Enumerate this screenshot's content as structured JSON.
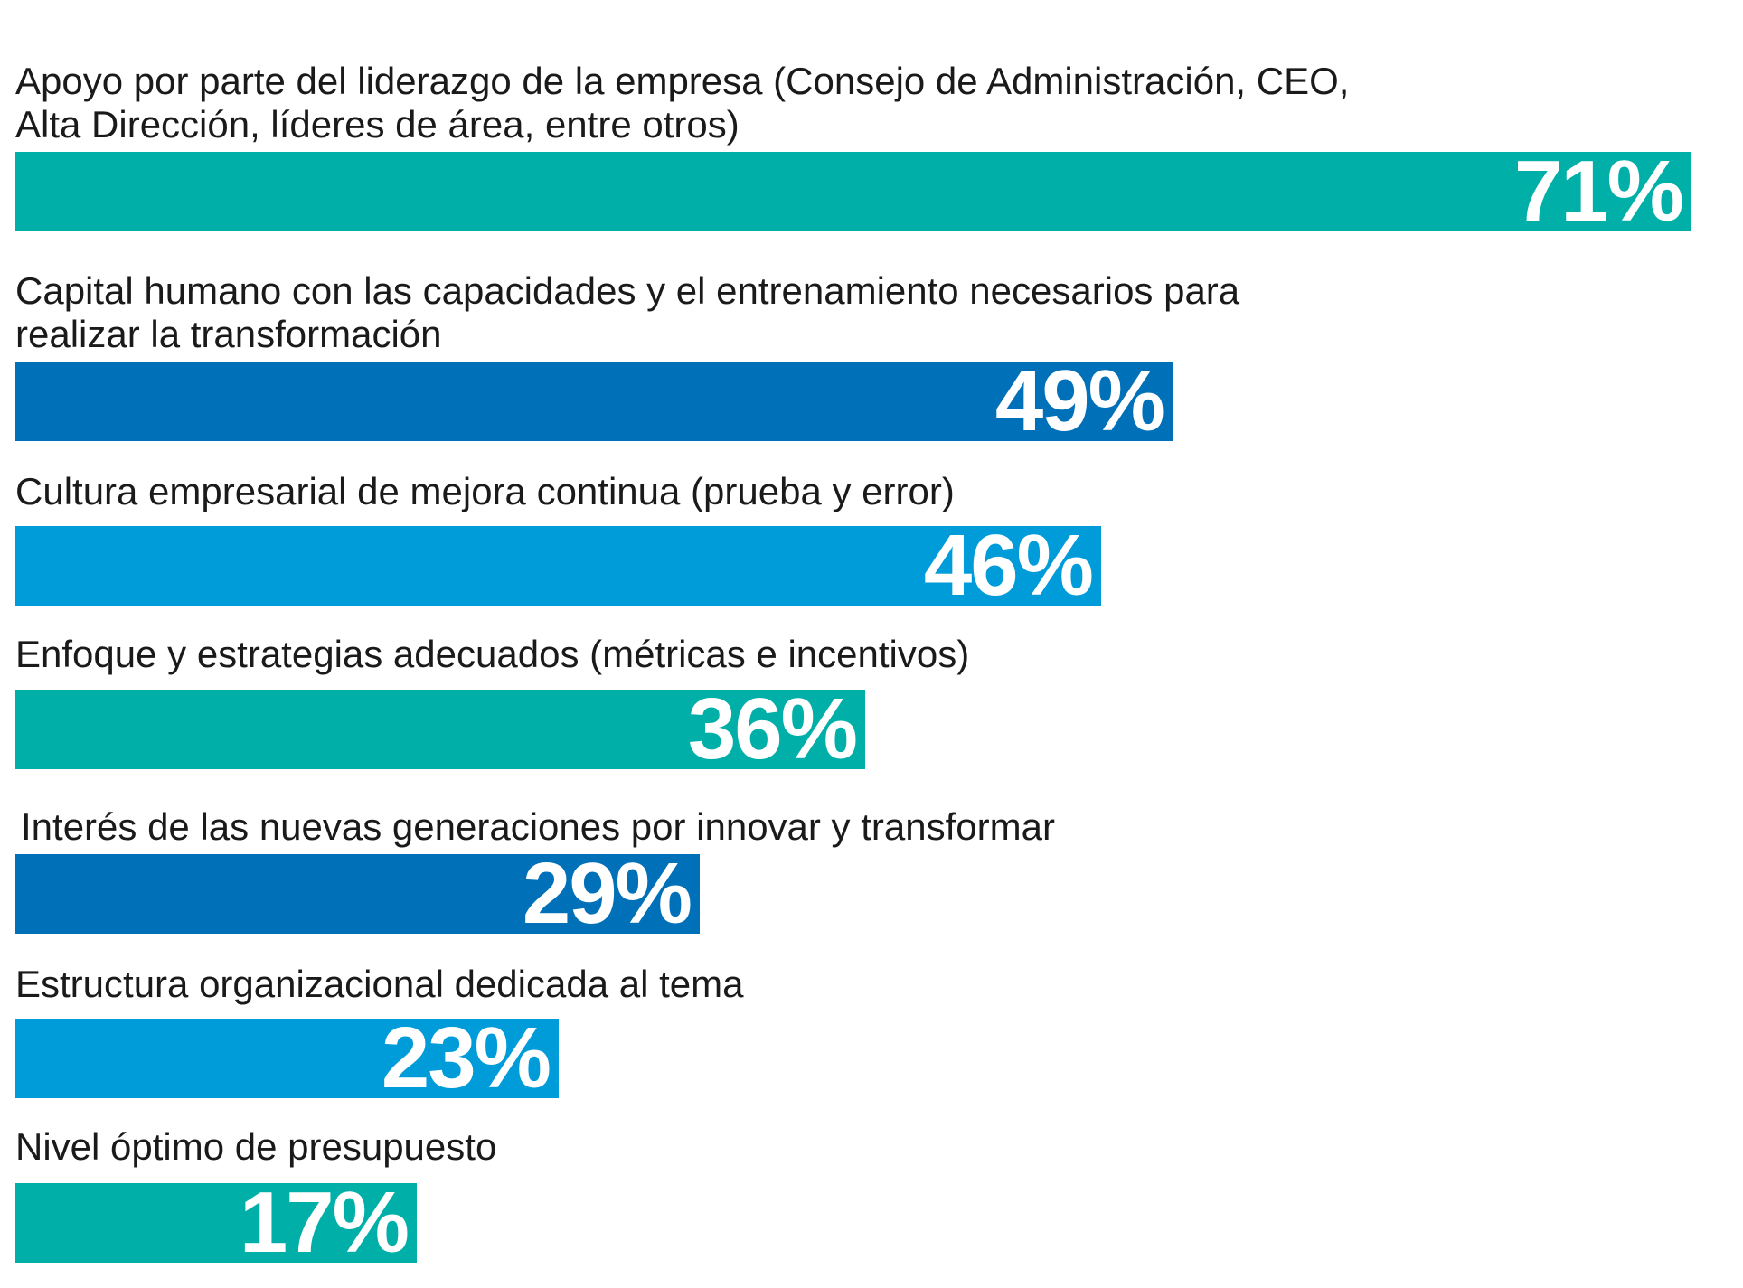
{
  "chart_data": {
    "type": "bar",
    "orientation": "horizontal",
    "categories": [
      "Apoyo por parte del liderazgo de la empresa (Consejo de Administración, CEO,\nAlta Dirección, líderes de área, entre otros)",
      "Capital humano con las capacidades y el entrenamiento necesarios para\nrealizar la transformación",
      "Cultura empresarial de mejora continua (prueba y error)",
      "Enfoque y estrategias adecuados (métricas e incentivos)",
      "Interés de las nuevas generaciones por innovar y transformar",
      "Estructura organizacional dedicada al tema",
      "Nivel óptimo de presupuesto"
    ],
    "values": [
      71,
      49,
      46,
      36,
      29,
      23,
      17
    ],
    "value_labels": [
      "71%",
      "49%",
      "46%",
      "36%",
      "29%",
      "23%",
      "17%"
    ],
    "colors": [
      "#00b0a8",
      "#0070b8",
      "#009bd9",
      "#00b0a8",
      "#0070b8",
      "#009bd9",
      "#00b0a8"
    ],
    "unit": "%",
    "xlim": [
      0,
      71
    ],
    "grid": false,
    "legend": "none"
  }
}
